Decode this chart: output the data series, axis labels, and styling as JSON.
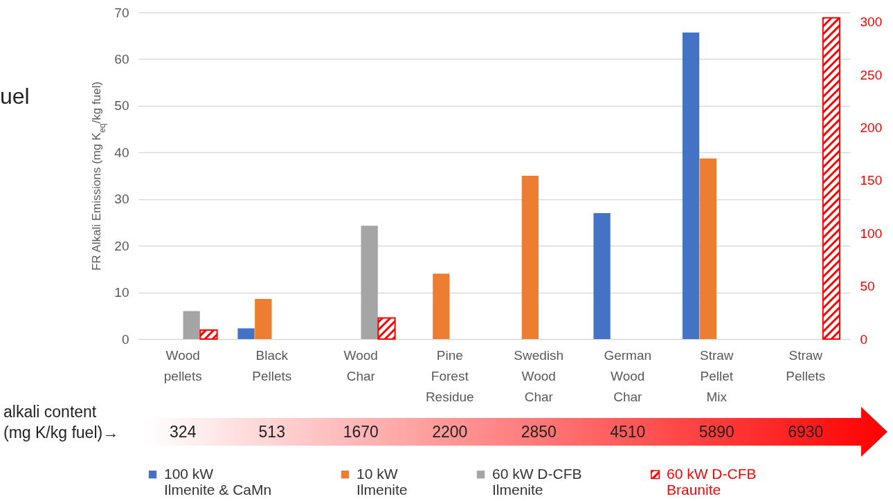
{
  "chart_data": {
    "type": "bar",
    "ylabel": "FR Alkali Emissions (mg K$_{eq}$/kg fuel)",
    "categories": [
      "Wood\npellets",
      "Black\nPellets",
      "Wood\nChar",
      "Pine\nForest\nResidue",
      "Swedish\nWood\nChar",
      "German\nWood\nChar",
      "Straw\nPellet\nMix",
      "Straw\nPellets"
    ],
    "series": [
      {
        "name": "100 kW\nIlmenite & CaMn",
        "color": "#4472c4",
        "values": [
          null,
          2.3,
          null,
          null,
          null,
          27,
          65.7,
          null
        ]
      },
      {
        "name": "10 kW\nIlmenite",
        "color": "#ed7d31",
        "values": [
          null,
          8.6,
          null,
          14,
          35,
          null,
          38.7,
          null
        ]
      },
      {
        "name": "60 kW D-CFB\nIlmenite",
        "color": "#a5a5a5",
        "values": [
          6,
          null,
          24.3,
          null,
          null,
          null,
          null,
          null
        ]
      },
      {
        "name": "60 kW D-CFB\nBraunite",
        "color": "#ff0000",
        "axis": "y2",
        "values": [
          8.5,
          null,
          20,
          null,
          null,
          null,
          null,
          304
        ]
      }
    ],
    "ylim": [
      0,
      70
    ],
    "yticks": [
      0,
      10,
      20,
      30,
      40,
      50,
      60,
      70
    ],
    "y2lim": [
      0,
      309
    ],
    "y2ticks": [
      0,
      50,
      100,
      150,
      200,
      250,
      300
    ],
    "grid": "y",
    "legend": "bottom",
    "annotations": [
      "uel",
      "alkali content\n(mg K/kg fuel)→",
      "324",
      "513",
      "1670",
      "2200",
      "2850",
      "4510",
      "5890",
      "6930"
    ]
  }
}
